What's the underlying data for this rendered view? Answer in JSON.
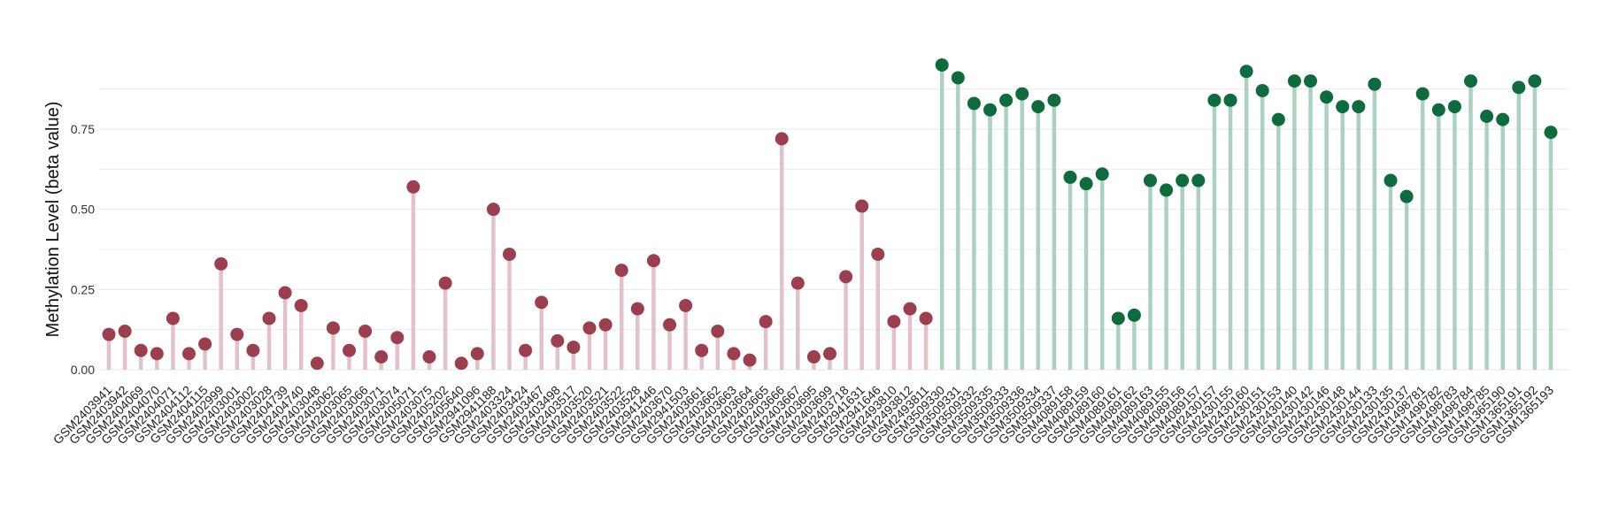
{
  "chart_data": {
    "type": "lollipop",
    "ylabel": "Methylation Level (beta value)",
    "xlabel": "",
    "title": "",
    "ylim": [
      0,
      0.95
    ],
    "yticks": [
      "0.00",
      "0.25",
      "0.50",
      "0.75"
    ],
    "ytick_values": [
      0,
      0.25,
      0.5,
      0.75
    ],
    "grid": true,
    "colors": {
      "group1_point": "#9b3f4f",
      "group1_stem": "#e2c2c8",
      "group2_point": "#0d6b3e",
      "group2_stem": "#acd1c0",
      "grid": "#ececec"
    },
    "points": [
      {
        "x": "GSM2403941",
        "y": 0.11,
        "group": 1
      },
      {
        "x": "GSM2403942",
        "y": 0.12,
        "group": 1
      },
      {
        "x": "GSM2404069",
        "y": 0.06,
        "group": 1
      },
      {
        "x": "GSM2404070",
        "y": 0.05,
        "group": 1
      },
      {
        "x": "GSM2404071",
        "y": 0.16,
        "group": 1
      },
      {
        "x": "GSM2404112",
        "y": 0.05,
        "group": 1
      },
      {
        "x": "GSM2404115",
        "y": 0.08,
        "group": 1
      },
      {
        "x": "GSM2402999",
        "y": 0.33,
        "group": 1
      },
      {
        "x": "GSM2403001",
        "y": 0.11,
        "group": 1
      },
      {
        "x": "GSM2403002",
        "y": 0.06,
        "group": 1
      },
      {
        "x": "GSM2403028",
        "y": 0.16,
        "group": 1
      },
      {
        "x": "GSM2404739",
        "y": 0.24,
        "group": 1
      },
      {
        "x": "GSM2404740",
        "y": 0.2,
        "group": 1
      },
      {
        "x": "GSM2403048",
        "y": 0.02,
        "group": 1
      },
      {
        "x": "GSM2403062",
        "y": 0.13,
        "group": 1
      },
      {
        "x": "GSM2403065",
        "y": 0.06,
        "group": 1
      },
      {
        "x": "GSM2403066",
        "y": 0.12,
        "group": 1
      },
      {
        "x": "GSM2403071",
        "y": 0.04,
        "group": 1
      },
      {
        "x": "GSM2403074",
        "y": 0.1,
        "group": 1
      },
      {
        "x": "GSM2405071",
        "y": 0.57,
        "group": 1
      },
      {
        "x": "GSM2403075",
        "y": 0.04,
        "group": 1
      },
      {
        "x": "GSM2405202",
        "y": 0.27,
        "group": 1
      },
      {
        "x": "GSM2405640",
        "y": 0.02,
        "group": 1
      },
      {
        "x": "GSM2941096",
        "y": 0.05,
        "group": 1
      },
      {
        "x": "GSM2941188",
        "y": 0.5,
        "group": 1
      },
      {
        "x": "GSM2403324",
        "y": 0.36,
        "group": 1
      },
      {
        "x": "GSM2403424",
        "y": 0.06,
        "group": 1
      },
      {
        "x": "GSM2403467",
        "y": 0.21,
        "group": 1
      },
      {
        "x": "GSM2403498",
        "y": 0.09,
        "group": 1
      },
      {
        "x": "GSM2403517",
        "y": 0.07,
        "group": 1
      },
      {
        "x": "GSM2403520",
        "y": 0.13,
        "group": 1
      },
      {
        "x": "GSM2403521",
        "y": 0.14,
        "group": 1
      },
      {
        "x": "GSM2403522",
        "y": 0.31,
        "group": 1
      },
      {
        "x": "GSM2403528",
        "y": 0.19,
        "group": 1
      },
      {
        "x": "GSM2941446",
        "y": 0.34,
        "group": 1
      },
      {
        "x": "GSM2403670",
        "y": 0.14,
        "group": 1
      },
      {
        "x": "GSM2941503",
        "y": 0.2,
        "group": 1
      },
      {
        "x": "GSM2403661",
        "y": 0.06,
        "group": 1
      },
      {
        "x": "GSM2403662",
        "y": 0.12,
        "group": 1
      },
      {
        "x": "GSM2403663",
        "y": 0.05,
        "group": 1
      },
      {
        "x": "GSM2403664",
        "y": 0.03,
        "group": 1
      },
      {
        "x": "GSM2403665",
        "y": 0.15,
        "group": 1
      },
      {
        "x": "GSM2403666",
        "y": 0.72,
        "group": 1
      },
      {
        "x": "GSM2403667",
        "y": 0.27,
        "group": 1
      },
      {
        "x": "GSM2403695",
        "y": 0.04,
        "group": 1
      },
      {
        "x": "GSM2403699",
        "y": 0.05,
        "group": 1
      },
      {
        "x": "GSM2403718",
        "y": 0.29,
        "group": 1
      },
      {
        "x": "GSM2941631",
        "y": 0.51,
        "group": 1
      },
      {
        "x": "GSM2941646",
        "y": 0.36,
        "group": 1
      },
      {
        "x": "GSM2493810",
        "y": 0.15,
        "group": 1
      },
      {
        "x": "GSM2493812",
        "y": 0.19,
        "group": 1
      },
      {
        "x": "GSM2493811",
        "y": 0.16,
        "group": 1
      },
      {
        "x": "GSM3509330",
        "y": 0.95,
        "group": 2
      },
      {
        "x": "GSM3509331",
        "y": 0.91,
        "group": 2
      },
      {
        "x": "GSM3509332",
        "y": 0.83,
        "group": 2
      },
      {
        "x": "GSM3509335",
        "y": 0.81,
        "group": 2
      },
      {
        "x": "GSM3509333",
        "y": 0.84,
        "group": 2
      },
      {
        "x": "GSM3509336",
        "y": 0.86,
        "group": 2
      },
      {
        "x": "GSM3509334",
        "y": 0.82,
        "group": 2
      },
      {
        "x": "GSM3509337",
        "y": 0.84,
        "group": 2
      },
      {
        "x": "GSM4089158",
        "y": 0.6,
        "group": 2
      },
      {
        "x": "GSM4089159",
        "y": 0.58,
        "group": 2
      },
      {
        "x": "GSM4089160",
        "y": 0.61,
        "group": 2
      },
      {
        "x": "GSM4089161",
        "y": 0.16,
        "group": 2
      },
      {
        "x": "GSM4089162",
        "y": 0.17,
        "group": 2
      },
      {
        "x": "GSM4089163",
        "y": 0.59,
        "group": 2
      },
      {
        "x": "GSM4089155",
        "y": 0.56,
        "group": 2
      },
      {
        "x": "GSM4089156",
        "y": 0.59,
        "group": 2
      },
      {
        "x": "GSM4089157",
        "y": 0.59,
        "group": 2
      },
      {
        "x": "GSM2430157",
        "y": 0.84,
        "group": 2
      },
      {
        "x": "GSM2430155",
        "y": 0.84,
        "group": 2
      },
      {
        "x": "GSM2430160",
        "y": 0.93,
        "group": 2
      },
      {
        "x": "GSM2430151",
        "y": 0.87,
        "group": 2
      },
      {
        "x": "GSM2430153",
        "y": 0.78,
        "group": 2
      },
      {
        "x": "GSM2430140",
        "y": 0.9,
        "group": 2
      },
      {
        "x": "GSM2430142",
        "y": 0.9,
        "group": 2
      },
      {
        "x": "GSM2430146",
        "y": 0.85,
        "group": 2
      },
      {
        "x": "GSM2430148",
        "y": 0.82,
        "group": 2
      },
      {
        "x": "GSM2430144",
        "y": 0.82,
        "group": 2
      },
      {
        "x": "GSM2430133",
        "y": 0.89,
        "group": 2
      },
      {
        "x": "GSM2430135",
        "y": 0.59,
        "group": 2
      },
      {
        "x": "GSM2430137",
        "y": 0.54,
        "group": 2
      },
      {
        "x": "GSM1498781",
        "y": 0.86,
        "group": 2
      },
      {
        "x": "GSM1498782",
        "y": 0.81,
        "group": 2
      },
      {
        "x": "GSM1498783",
        "y": 0.82,
        "group": 2
      },
      {
        "x": "GSM1498784",
        "y": 0.9,
        "group": 2
      },
      {
        "x": "GSM1498785",
        "y": 0.79,
        "group": 2
      },
      {
        "x": "GSM1365190",
        "y": 0.78,
        "group": 2
      },
      {
        "x": "GSM1365191",
        "y": 0.88,
        "group": 2
      },
      {
        "x": "GSM1365192",
        "y": 0.9,
        "group": 2
      },
      {
        "x": "GSM1365193",
        "y": 0.74,
        "group": 2
      }
    ]
  }
}
